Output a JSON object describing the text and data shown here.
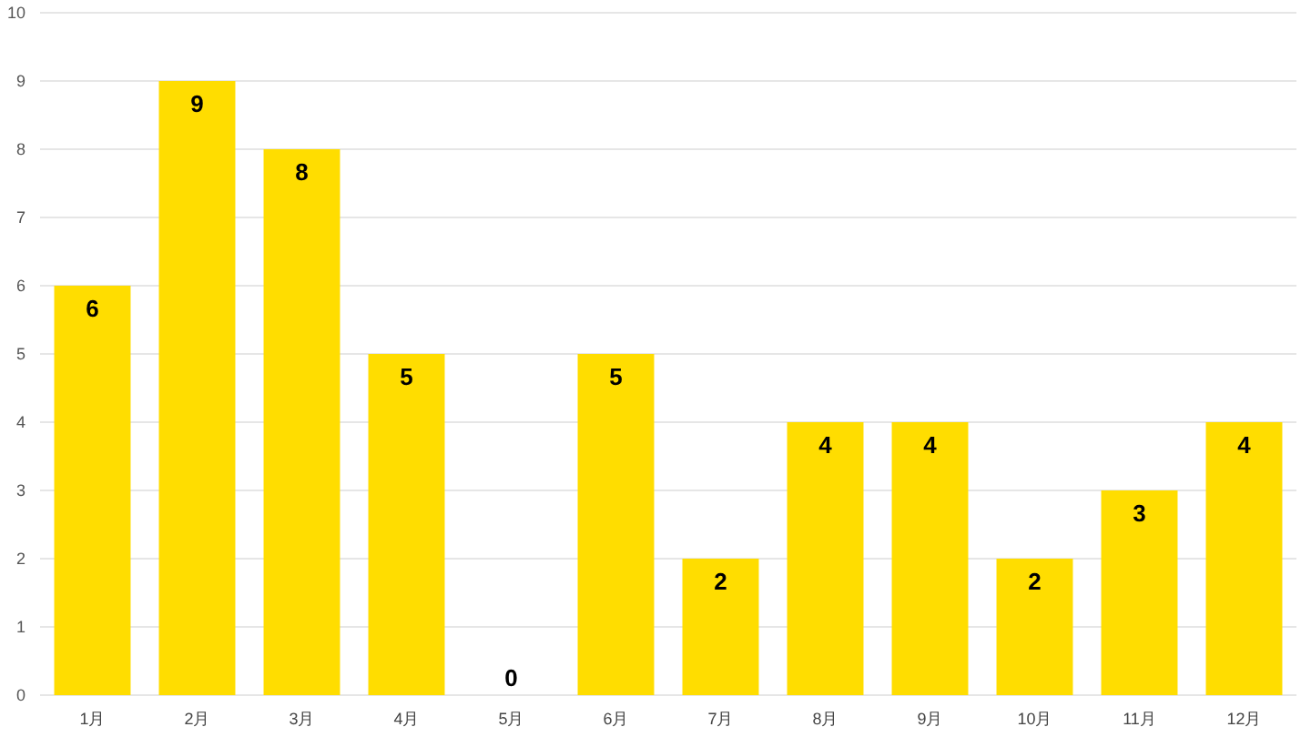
{
  "chart_data": {
    "type": "bar",
    "categories": [
      "1月",
      "2月",
      "3月",
      "4月",
      "5月",
      "6月",
      "7月",
      "8月",
      "9月",
      "10月",
      "11月",
      "12月"
    ],
    "values": [
      6,
      9,
      8,
      5,
      0,
      5,
      2,
      4,
      4,
      2,
      3,
      4
    ],
    "color": "#ffdd00",
    "ylim": [
      0,
      10
    ],
    "yticks": [
      0,
      1,
      2,
      3,
      4,
      5,
      6,
      7,
      8,
      9,
      10
    ],
    "grid": "y",
    "data_labels": true
  }
}
